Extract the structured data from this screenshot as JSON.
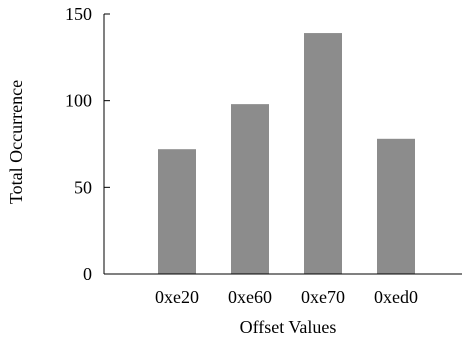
{
  "chart_data": {
    "type": "bar",
    "categories": [
      "0xe20",
      "0xe60",
      "0xe70",
      "0xed0"
    ],
    "values": [
      72,
      98,
      139,
      78
    ],
    "title": "",
    "xlabel": "Offset Values",
    "ylabel": "Total Occurrence",
    "ylim": [
      0,
      150
    ],
    "yticks": [
      0,
      50,
      100,
      150
    ],
    "grid": false,
    "legend": "none",
    "bar_color": "#8c8c8c",
    "axis_color": "#000000"
  }
}
